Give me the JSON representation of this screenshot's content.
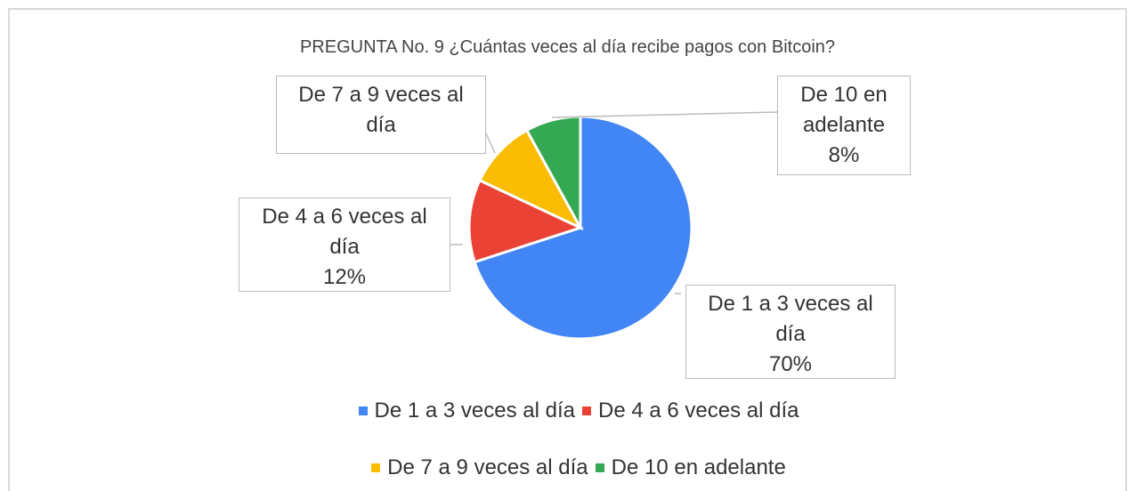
{
  "chart_data": {
    "type": "pie",
    "title": "PREGUNTA No. 9  ¿Cuántas veces al día recibe pagos con Bitcoin?",
    "categories": [
      "De 1 a 3 veces al día",
      "De 4 a 6 veces al día",
      "De 7 a 9 veces al día",
      "De 10 en adelante"
    ],
    "values": [
      70,
      12,
      10,
      8
    ],
    "value_labels": [
      "70%",
      "12%",
      null,
      "8%"
    ],
    "colors": [
      "#4285f4",
      "#ea4335",
      "#fbbc04",
      "#34a853"
    ],
    "legend": "bottom"
  }
}
